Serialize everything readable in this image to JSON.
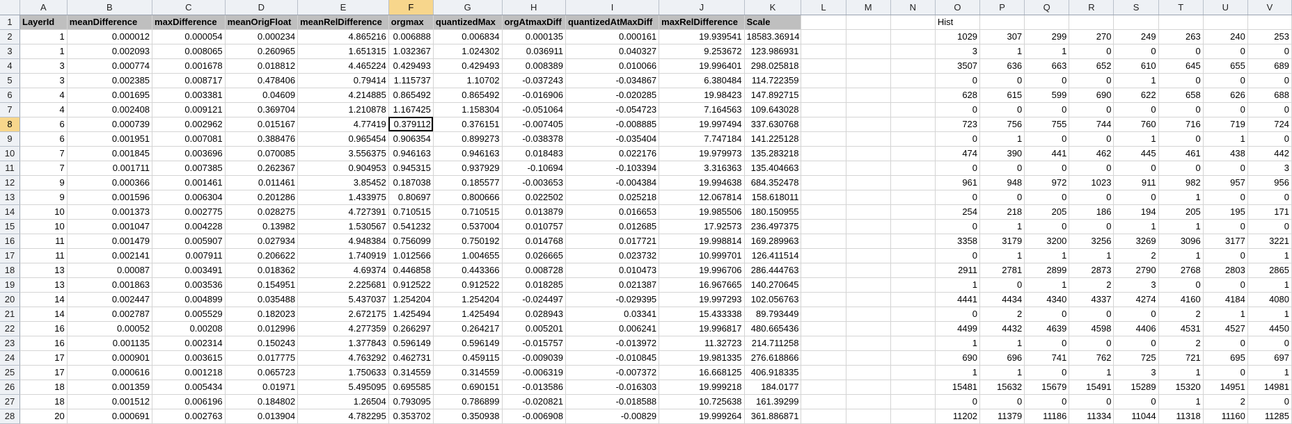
{
  "sheet": {
    "columns": [
      "A",
      "B",
      "C",
      "D",
      "E",
      "F",
      "G",
      "H",
      "I",
      "J",
      "K",
      "L",
      "M",
      "N",
      "O",
      "P",
      "Q",
      "R",
      "S",
      "T",
      "U",
      "V"
    ],
    "header_labels": [
      "LayerId",
      "meanDifference",
      "maxDifference",
      "meanOrigFloat",
      "meanRelDifference",
      "orgmax",
      "quantizedMax",
      "orgAtmaxDiff",
      "quantizedAtMaxDiff",
      "maxRelDifference",
      "Scale"
    ],
    "hist_label": "Hist",
    "selected_cell": "F8",
    "rows": [
      {
        "n": "2",
        "main": [
          "1",
          "0.000012",
          "0.000054",
          "0.000234",
          "4.865216",
          "0.006888",
          "0.006834",
          "0.000135",
          "0.000161",
          "19.939541",
          "18583.36914"
        ],
        "hist": [
          "1029",
          "307",
          "299",
          "270",
          "249",
          "263",
          "240",
          "253"
        ]
      },
      {
        "n": "3",
        "main": [
          "1",
          "0.002093",
          "0.008065",
          "0.260965",
          "1.651315",
          "1.032367",
          "1.024302",
          "0.036911",
          "0.040327",
          "9.253672",
          "123.986931"
        ],
        "hist": [
          "3",
          "1",
          "1",
          "0",
          "0",
          "0",
          "0",
          "0"
        ]
      },
      {
        "n": "4",
        "main": [
          "3",
          "0.000774",
          "0.001678",
          "0.018812",
          "4.465224",
          "0.429493",
          "0.429493",
          "0.008389",
          "0.010066",
          "19.996401",
          "298.025818"
        ],
        "hist": [
          "3507",
          "636",
          "663",
          "652",
          "610",
          "645",
          "655",
          "689"
        ]
      },
      {
        "n": "5",
        "main": [
          "3",
          "0.002385",
          "0.008717",
          "0.478406",
          "0.79414",
          "1.115737",
          "1.10702",
          "-0.037243",
          "-0.034867",
          "6.380484",
          "114.722359"
        ],
        "hist": [
          "0",
          "0",
          "0",
          "0",
          "1",
          "0",
          "0",
          "0"
        ]
      },
      {
        "n": "6",
        "main": [
          "4",
          "0.001695",
          "0.003381",
          "0.04609",
          "4.214885",
          "0.865492",
          "0.865492",
          "-0.016906",
          "-0.020285",
          "19.98423",
          "147.892715"
        ],
        "hist": [
          "628",
          "615",
          "599",
          "690",
          "622",
          "658",
          "626",
          "688"
        ]
      },
      {
        "n": "7",
        "main": [
          "4",
          "0.002408",
          "0.009121",
          "0.369704",
          "1.210878",
          "1.167425",
          "1.158304",
          "-0.051064",
          "-0.054723",
          "7.164563",
          "109.643028"
        ],
        "hist": [
          "0",
          "0",
          "0",
          "0",
          "0",
          "0",
          "0",
          "0"
        ]
      },
      {
        "n": "8",
        "main": [
          "6",
          "0.000739",
          "0.002962",
          "0.015167",
          "4.77419",
          "0.379112",
          "0.376151",
          "-0.007405",
          "-0.008885",
          "19.997494",
          "337.630768"
        ],
        "hist": [
          "723",
          "756",
          "755",
          "744",
          "760",
          "716",
          "719",
          "724"
        ]
      },
      {
        "n": "9",
        "main": [
          "6",
          "0.001951",
          "0.007081",
          "0.388476",
          "0.965454",
          "0.906354",
          "0.899273",
          "-0.038378",
          "-0.035404",
          "7.747184",
          "141.225128"
        ],
        "hist": [
          "0",
          "1",
          "0",
          "0",
          "1",
          "0",
          "1",
          "0"
        ]
      },
      {
        "n": "10",
        "main": [
          "7",
          "0.001845",
          "0.003696",
          "0.070085",
          "3.556375",
          "0.946163",
          "0.946163",
          "0.018483",
          "0.022176",
          "19.979973",
          "135.283218"
        ],
        "hist": [
          "474",
          "390",
          "441",
          "462",
          "445",
          "461",
          "438",
          "442"
        ]
      },
      {
        "n": "11",
        "main": [
          "7",
          "0.001711",
          "0.007385",
          "0.262367",
          "0.904953",
          "0.945315",
          "0.937929",
          "-0.10694",
          "-0.103394",
          "3.316363",
          "135.404663"
        ],
        "hist": [
          "0",
          "0",
          "0",
          "0",
          "0",
          "0",
          "0",
          "3"
        ]
      },
      {
        "n": "12",
        "main": [
          "9",
          "0.000366",
          "0.001461",
          "0.011461",
          "3.85452",
          "0.187038",
          "0.185577",
          "-0.003653",
          "-0.004384",
          "19.994638",
          "684.352478"
        ],
        "hist": [
          "961",
          "948",
          "972",
          "1023",
          "911",
          "982",
          "957",
          "956"
        ]
      },
      {
        "n": "13",
        "main": [
          "9",
          "0.001596",
          "0.006304",
          "0.201286",
          "1.433975",
          "0.80697",
          "0.800666",
          "0.022502",
          "0.025218",
          "12.067814",
          "158.618011"
        ],
        "hist": [
          "0",
          "0",
          "0",
          "0",
          "0",
          "1",
          "0",
          "0"
        ]
      },
      {
        "n": "14",
        "main": [
          "10",
          "0.001373",
          "0.002775",
          "0.028275",
          "4.727391",
          "0.710515",
          "0.710515",
          "0.013879",
          "0.016653",
          "19.985506",
          "180.150955"
        ],
        "hist": [
          "254",
          "218",
          "205",
          "186",
          "194",
          "205",
          "195",
          "171"
        ]
      },
      {
        "n": "15",
        "main": [
          "10",
          "0.001047",
          "0.004228",
          "0.13982",
          "1.530567",
          "0.541232",
          "0.537004",
          "0.010757",
          "0.012685",
          "17.92573",
          "236.497375"
        ],
        "hist": [
          "0",
          "1",
          "0",
          "0",
          "1",
          "1",
          "0",
          "0"
        ]
      },
      {
        "n": "16",
        "main": [
          "11",
          "0.001479",
          "0.005907",
          "0.027934",
          "4.948384",
          "0.756099",
          "0.750192",
          "0.014768",
          "0.017721",
          "19.998814",
          "169.289963"
        ],
        "hist": [
          "3358",
          "3179",
          "3200",
          "3256",
          "3269",
          "3096",
          "3177",
          "3221"
        ]
      },
      {
        "n": "17",
        "main": [
          "11",
          "0.002141",
          "0.007911",
          "0.206622",
          "1.740919",
          "1.012566",
          "1.004655",
          "0.026665",
          "0.023732",
          "10.999701",
          "126.411514"
        ],
        "hist": [
          "0",
          "1",
          "1",
          "1",
          "2",
          "1",
          "0",
          "1"
        ]
      },
      {
        "n": "18",
        "main": [
          "13",
          "0.00087",
          "0.003491",
          "0.018362",
          "4.69374",
          "0.446858",
          "0.443366",
          "0.008728",
          "0.010473",
          "19.996706",
          "286.444763"
        ],
        "hist": [
          "2911",
          "2781",
          "2899",
          "2873",
          "2790",
          "2768",
          "2803",
          "2865"
        ]
      },
      {
        "n": "19",
        "main": [
          "13",
          "0.001863",
          "0.003536",
          "0.154951",
          "2.225681",
          "0.912522",
          "0.912522",
          "0.018285",
          "0.021387",
          "16.967665",
          "140.270645"
        ],
        "hist": [
          "1",
          "0",
          "1",
          "2",
          "3",
          "0",
          "0",
          "1"
        ]
      },
      {
        "n": "20",
        "main": [
          "14",
          "0.002447",
          "0.004899",
          "0.035488",
          "5.437037",
          "1.254204",
          "1.254204",
          "-0.024497",
          "-0.029395",
          "19.997293",
          "102.056763"
        ],
        "hist": [
          "4441",
          "4434",
          "4340",
          "4337",
          "4274",
          "4160",
          "4184",
          "4080"
        ]
      },
      {
        "n": "21",
        "main": [
          "14",
          "0.002787",
          "0.005529",
          "0.182023",
          "2.672175",
          "1.425494",
          "1.425494",
          "0.028943",
          "0.03341",
          "15.433338",
          "89.793449"
        ],
        "hist": [
          "0",
          "2",
          "0",
          "0",
          "0",
          "2",
          "1",
          "1"
        ]
      },
      {
        "n": "22",
        "main": [
          "16",
          "0.00052",
          "0.00208",
          "0.012996",
          "4.277359",
          "0.266297",
          "0.264217",
          "0.005201",
          "0.006241",
          "19.996817",
          "480.665436"
        ],
        "hist": [
          "4499",
          "4432",
          "4639",
          "4598",
          "4406",
          "4531",
          "4527",
          "4450"
        ]
      },
      {
        "n": "23",
        "main": [
          "16",
          "0.001135",
          "0.002314",
          "0.150243",
          "1.377843",
          "0.596149",
          "0.596149",
          "-0.015757",
          "-0.013972",
          "11.32723",
          "214.711258"
        ],
        "hist": [
          "1",
          "1",
          "0",
          "0",
          "0",
          "2",
          "0",
          "0"
        ]
      },
      {
        "n": "24",
        "main": [
          "17",
          "0.000901",
          "0.003615",
          "0.017775",
          "4.763292",
          "0.462731",
          "0.459115",
          "-0.009039",
          "-0.010845",
          "19.981335",
          "276.618866"
        ],
        "hist": [
          "690",
          "696",
          "741",
          "762",
          "725",
          "721",
          "695",
          "697"
        ]
      },
      {
        "n": "25",
        "main": [
          "17",
          "0.000616",
          "0.001218",
          "0.065723",
          "1.750633",
          "0.314559",
          "0.314559",
          "-0.006319",
          "-0.007372",
          "16.668125",
          "406.918335"
        ],
        "hist": [
          "1",
          "1",
          "0",
          "1",
          "3",
          "1",
          "0",
          "1"
        ]
      },
      {
        "n": "26",
        "main": [
          "18",
          "0.001359",
          "0.005434",
          "0.01971",
          "5.495095",
          "0.695585",
          "0.690151",
          "-0.013586",
          "-0.016303",
          "19.999218",
          "184.0177"
        ],
        "hist": [
          "15481",
          "15632",
          "15679",
          "15491",
          "15289",
          "15320",
          "14951",
          "14981"
        ]
      },
      {
        "n": "27",
        "main": [
          "18",
          "0.001512",
          "0.006196",
          "0.184802",
          "1.26504",
          "0.793095",
          "0.786899",
          "-0.020821",
          "-0.018588",
          "10.725638",
          "161.39299"
        ],
        "hist": [
          "0",
          "0",
          "0",
          "0",
          "0",
          "1",
          "2",
          "0"
        ]
      },
      {
        "n": "28",
        "main": [
          "20",
          "0.000691",
          "0.002763",
          "0.013904",
          "4.782295",
          "0.353702",
          "0.350938",
          "-0.006908",
          "-0.00829",
          "19.999264",
          "361.886871"
        ],
        "hist": [
          "11202",
          "11379",
          "11186",
          "11334",
          "11044",
          "11318",
          "11160",
          "11285"
        ]
      }
    ]
  }
}
